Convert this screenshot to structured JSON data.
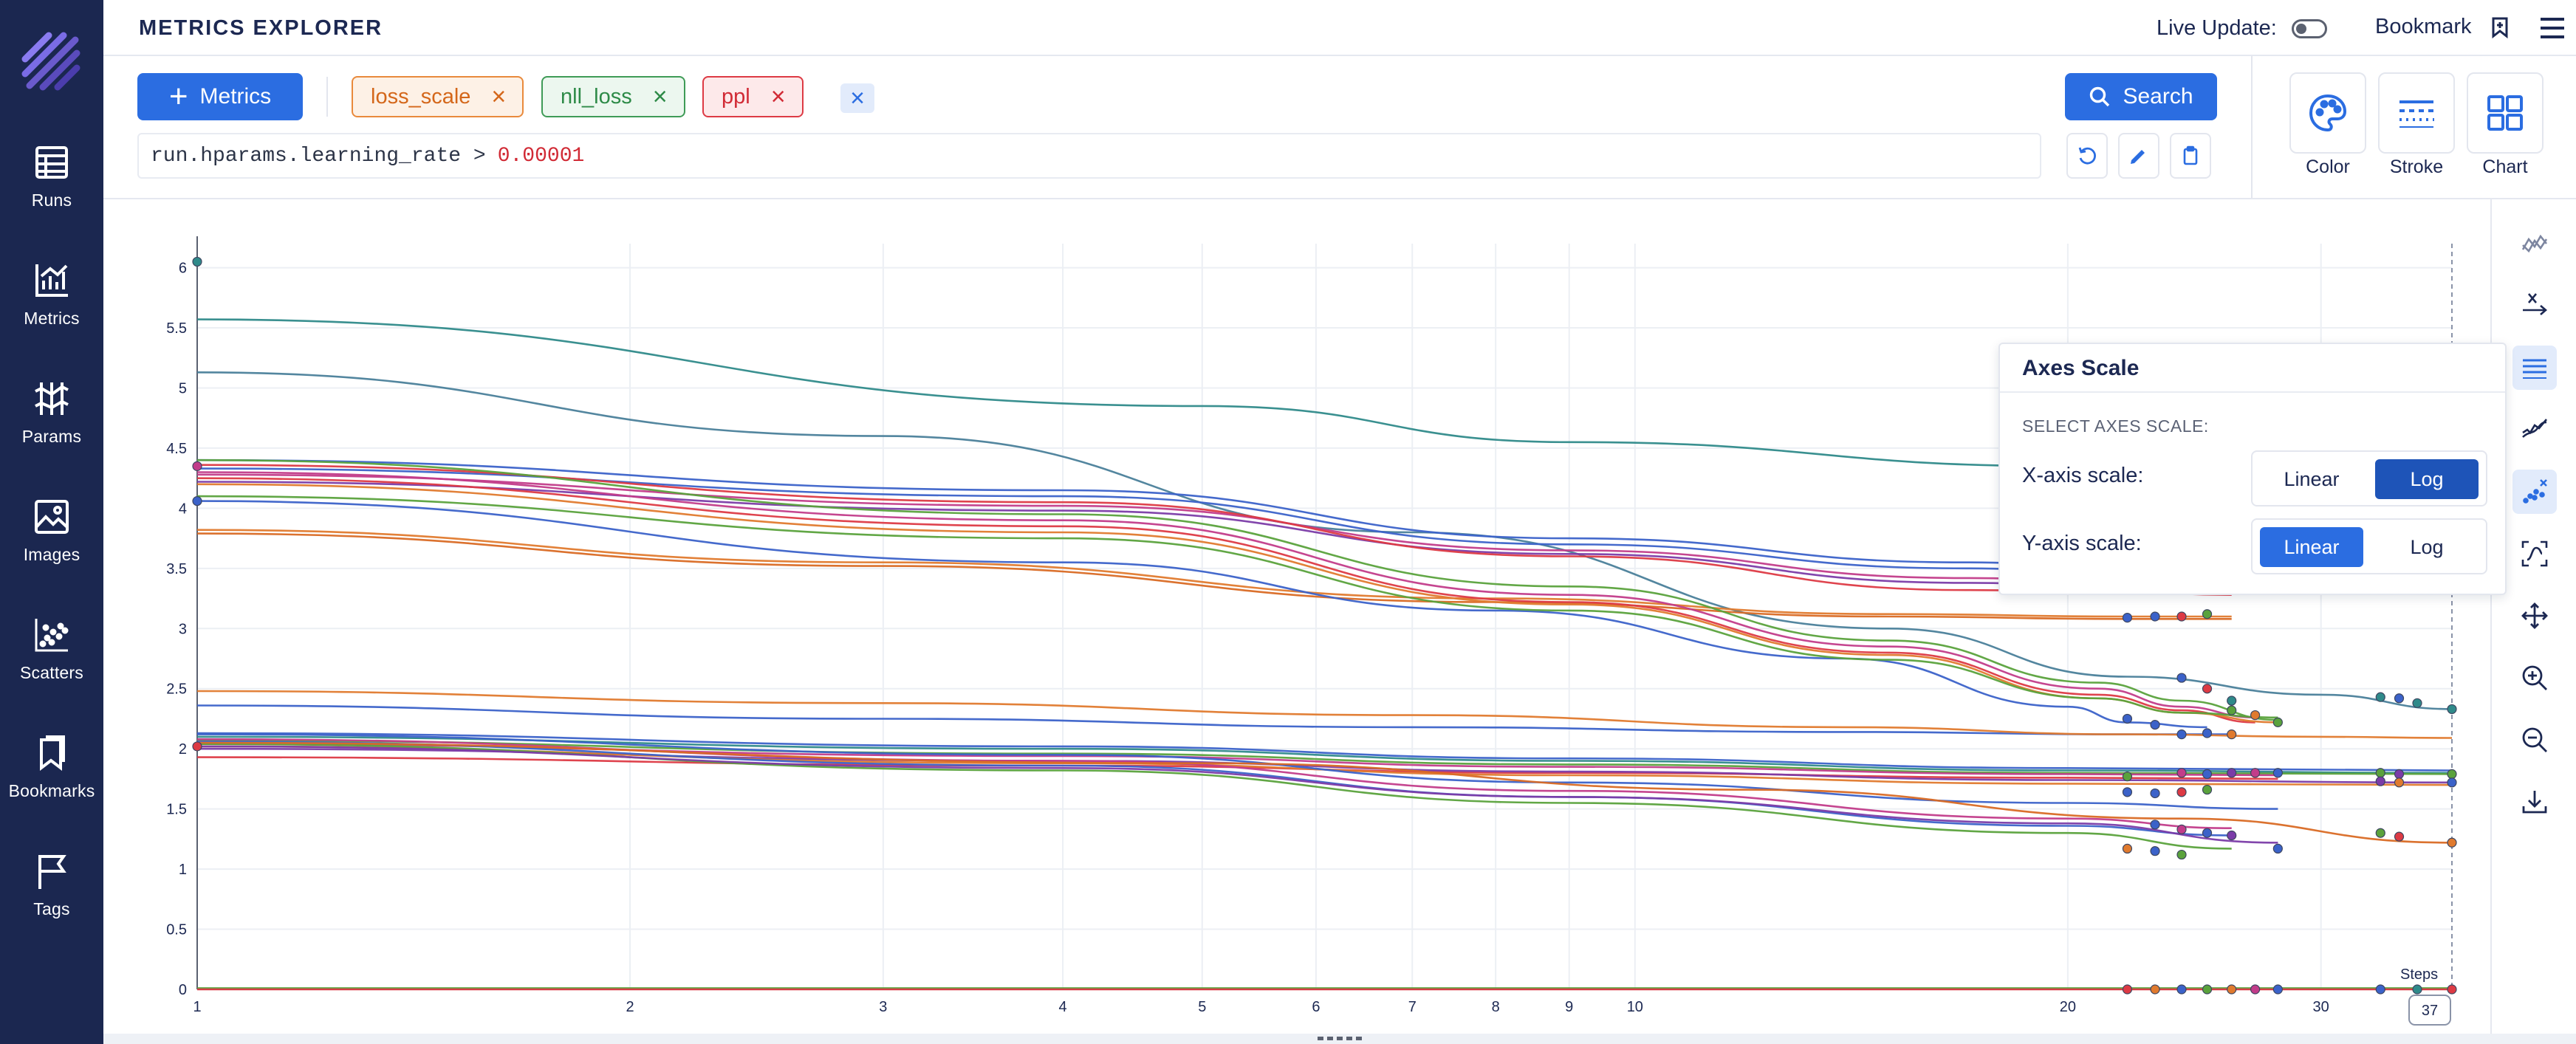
{
  "app": {
    "title": "METRICS EXPLORER"
  },
  "sidebar": {
    "items": [
      {
        "label": "Runs",
        "icon": "table-icon"
      },
      {
        "label": "Metrics",
        "icon": "chart-icon"
      },
      {
        "label": "Params",
        "icon": "params-icon"
      },
      {
        "label": "Images",
        "icon": "image-icon"
      },
      {
        "label": "Scatters",
        "icon": "scatter-icon"
      },
      {
        "label": "Bookmarks",
        "icon": "bookmark-icon"
      },
      {
        "label": "Tags",
        "icon": "flag-icon"
      }
    ]
  },
  "header": {
    "live_update_label": "Live Update:",
    "live_update_on": false,
    "bookmark_label": "Bookmark"
  },
  "toolbar": {
    "metrics_label": "Metrics",
    "chips": [
      {
        "label": "loss_scale",
        "color": "#e98a3c"
      },
      {
        "label": "nll_loss",
        "color": "#3f9b57"
      },
      {
        "label": "ppl",
        "color": "#dd3a44"
      }
    ],
    "search_label": "Search",
    "query_text": "run.hparams.learning_rate >",
    "query_value": "0.00001"
  },
  "controls": {
    "color_label": "Color",
    "stroke_label": "Stroke",
    "chart_label": "Chart"
  },
  "axes_popover": {
    "title": "Axes Scale",
    "subtitle": "SELECT AXES SCALE:",
    "x_label": "X-axis scale:",
    "y_label": "Y-axis scale:",
    "linear": "Linear",
    "log": "Log",
    "x_selected": "Log",
    "y_selected": "Linear"
  },
  "chart_data": {
    "type": "line",
    "x_scale": "log",
    "y_scale": "linear",
    "xlim": [
      1,
      37
    ],
    "ylim": [
      0,
      6.2
    ],
    "x_ticks": [
      1,
      2,
      3,
      4,
      5,
      6,
      7,
      8,
      9,
      10,
      20,
      30
    ],
    "y_ticks": [
      0,
      0.5,
      1,
      1.5,
      2,
      2.5,
      3,
      3.5,
      4,
      4.5,
      5,
      5.5,
      6
    ],
    "x_axis_caption": "Steps",
    "current_step": "37",
    "series": [
      {
        "color": "#2f8a8a",
        "x": [
          1,
          5,
          9,
          20,
          24,
          37
        ],
        "y": [
          5.57,
          4.85,
          4.55,
          4.35,
          4.32,
          4.3
        ]
      },
      {
        "color": "#4a7f9a",
        "x": [
          1,
          3,
          7,
          15,
          22,
          30,
          37
        ],
        "y": [
          5.13,
          4.6,
          3.8,
          3.0,
          2.6,
          2.45,
          2.33
        ]
      },
      {
        "color": "#3b62c9",
        "x": [
          1,
          4,
          9,
          17,
          22,
          26
        ],
        "y": [
          4.4,
          4.15,
          3.75,
          3.55,
          3.5,
          3.48
        ]
      },
      {
        "color": "#3b62c9",
        "x": [
          1,
          4,
          9,
          17,
          22,
          26
        ],
        "y": [
          4.33,
          4.1,
          3.7,
          3.5,
          3.45,
          3.44
        ]
      },
      {
        "color": "#c23c8a",
        "x": [
          1,
          4,
          9,
          17,
          22,
          26
        ],
        "y": [
          4.28,
          4.02,
          3.65,
          3.42,
          3.38,
          3.36
        ]
      },
      {
        "color": "#7b3ca8",
        "x": [
          1,
          4,
          9,
          17,
          22,
          26
        ],
        "y": [
          4.22,
          3.98,
          3.62,
          3.38,
          3.34,
          3.32
        ]
      },
      {
        "color": "#dd3a44",
        "x": [
          1,
          4,
          9,
          17,
          22,
          26
        ],
        "y": [
          4.36,
          4.05,
          3.6,
          3.32,
          3.3,
          3.28
        ]
      },
      {
        "color": "#e07a2e",
        "x": [
          1,
          3,
          8,
          15,
          22,
          26
        ],
        "y": [
          3.82,
          3.55,
          3.25,
          3.12,
          3.1,
          3.1
        ]
      },
      {
        "color": "#d96a24",
        "x": [
          1,
          3,
          8,
          15,
          22,
          26
        ],
        "y": [
          3.79,
          3.52,
          3.22,
          3.1,
          3.08,
          3.08
        ]
      },
      {
        "color": "#3b62c9",
        "x": [
          1,
          4,
          8,
          14,
          20,
          22,
          25
        ],
        "y": [
          4.06,
          3.55,
          3.15,
          2.75,
          2.35,
          2.22,
          2.18
        ]
      },
      {
        "color": "#5aa23c",
        "x": [
          1,
          4,
          9,
          15,
          21,
          24,
          28
        ],
        "y": [
          4.4,
          3.95,
          3.35,
          2.9,
          2.55,
          2.4,
          2.24
        ]
      },
      {
        "color": "#c23c8a",
        "x": [
          1,
          4,
          9,
          15,
          21,
          24,
          27
        ],
        "y": [
          4.3,
          3.9,
          3.28,
          2.85,
          2.5,
          2.35,
          2.26
        ]
      },
      {
        "color": "#dd3a44",
        "x": [
          1,
          4,
          9,
          15,
          21,
          24,
          27
        ],
        "y": [
          4.25,
          3.85,
          3.22,
          2.8,
          2.45,
          2.32,
          2.22
        ]
      },
      {
        "color": "#e07a2e",
        "x": [
          1,
          4,
          9,
          15,
          21,
          24,
          28
        ],
        "y": [
          4.2,
          3.8,
          3.2,
          2.78,
          2.42,
          2.3,
          2.22
        ]
      },
      {
        "color": "#5aa23c",
        "x": [
          1,
          4,
          9,
          15,
          21,
          24,
          28
        ],
        "y": [
          4.1,
          3.75,
          3.15,
          2.74,
          2.42,
          2.3,
          2.26
        ]
      },
      {
        "color": "#3b62c9",
        "x": [
          1,
          3,
          7,
          14,
          22,
          26
        ],
        "y": [
          2.36,
          2.25,
          2.18,
          2.14,
          2.12,
          2.12
        ]
      },
      {
        "color": "#e07a2e",
        "x": [
          1,
          3,
          7,
          14,
          22,
          30,
          37
        ],
        "y": [
          2.48,
          2.38,
          2.28,
          2.18,
          2.12,
          2.1,
          2.09
        ]
      },
      {
        "color": "#3b62c9",
        "x": [
          1,
          4,
          9,
          20,
          37
        ],
        "y": [
          2.13,
          2.02,
          1.92,
          1.84,
          1.82
        ]
      },
      {
        "color": "#2f8a8a",
        "x": [
          1,
          4,
          9,
          20,
          37
        ],
        "y": [
          2.1,
          2.0,
          1.9,
          1.82,
          1.8
        ]
      },
      {
        "color": "#5aa23c",
        "x": [
          1,
          4,
          9,
          20,
          37
        ],
        "y": [
          2.07,
          1.96,
          1.87,
          1.8,
          1.79
        ]
      },
      {
        "color": "#c23c8a",
        "x": [
          1,
          4,
          9,
          20,
          28
        ],
        "y": [
          2.04,
          1.94,
          1.85,
          1.79,
          1.78
        ]
      },
      {
        "color": "#dd3a44",
        "x": [
          1,
          4,
          9,
          20,
          28
        ],
        "y": [
          1.93,
          1.86,
          1.8,
          1.76,
          1.75
        ]
      },
      {
        "color": "#7b3ca8",
        "x": [
          1,
          4,
          9,
          20,
          37
        ],
        "y": [
          2.0,
          1.9,
          1.81,
          1.74,
          1.72
        ]
      },
      {
        "color": "#e07a2e",
        "x": [
          1,
          4,
          9,
          20,
          37
        ],
        "y": [
          2.02,
          1.88,
          1.78,
          1.71,
          1.7
        ]
      },
      {
        "color": "#3b62c9",
        "x": [
          1,
          4,
          9,
          20,
          28
        ],
        "y": [
          2.12,
          1.95,
          1.72,
          1.55,
          1.5
        ]
      },
      {
        "color": "#c23c8a",
        "x": [
          1,
          4,
          9,
          20,
          26
        ],
        "y": [
          2.08,
          1.9,
          1.65,
          1.42,
          1.34
        ]
      },
      {
        "color": "#3b62c9",
        "x": [
          1,
          4,
          9,
          20,
          26
        ],
        "y": [
          2.06,
          1.86,
          1.6,
          1.36,
          1.28
        ]
      },
      {
        "color": "#5aa23c",
        "x": [
          1,
          4,
          9,
          20,
          26
        ],
        "y": [
          2.04,
          1.82,
          1.55,
          1.3,
          1.17
        ]
      },
      {
        "color": "#7b3ca8",
        "x": [
          1,
          4,
          9,
          20,
          28
        ],
        "y": [
          2.02,
          1.84,
          1.6,
          1.38,
          1.22
        ]
      },
      {
        "color": "#d96a24",
        "x": [
          1,
          5,
          12,
          24,
          37
        ],
        "y": [
          2.05,
          1.88,
          1.66,
          1.42,
          1.22
        ]
      },
      {
        "color": "#5aa23c",
        "x": [
          1,
          37
        ],
        "y": [
          0.01,
          0.01
        ]
      },
      {
        "color": "#dd3a44",
        "x": [
          1,
          37
        ],
        "y": [
          0.0,
          0.0
        ]
      }
    ],
    "markers": [
      {
        "color": "#2f8a8a",
        "x": 1,
        "y": 6.05
      },
      {
        "color": "#3b62c9",
        "x": 1,
        "y": 4.06
      },
      {
        "color": "#c23c8a",
        "x": 1,
        "y": 4.35
      },
      {
        "color": "#dd3a44",
        "x": 1,
        "y": 2.02
      },
      {
        "color": "#3b62c9",
        "x": 22,
        "y": 3.09
      },
      {
        "color": "#3b62c9",
        "x": 23,
        "y": 3.1
      },
      {
        "color": "#dd3a44",
        "x": 24,
        "y": 3.1
      },
      {
        "color": "#5aa23c",
        "x": 25,
        "y": 3.12
      },
      {
        "color": "#3b62c9",
        "x": 24,
        "y": 2.59
      },
      {
        "color": "#dd3a44",
        "x": 25,
        "y": 2.5
      },
      {
        "color": "#2f8a8a",
        "x": 26,
        "y": 2.4
      },
      {
        "color": "#5aa23c",
        "x": 26,
        "y": 2.32
      },
      {
        "color": "#e07a2e",
        "x": 27,
        "y": 2.28
      },
      {
        "color": "#5aa23c",
        "x": 28,
        "y": 2.22
      },
      {
        "color": "#3b62c9",
        "x": 22,
        "y": 2.25
      },
      {
        "color": "#3b62c9",
        "x": 23,
        "y": 2.2
      },
      {
        "color": "#2f8a8a",
        "x": 33,
        "y": 2.43
      },
      {
        "color": "#3b62c9",
        "x": 34,
        "y": 2.42
      },
      {
        "color": "#2f8a8a",
        "x": 35,
        "y": 2.38
      },
      {
        "color": "#2f8a8a",
        "x": 37,
        "y": 2.33
      },
      {
        "color": "#3b62c9",
        "x": 24,
        "y": 2.12
      },
      {
        "color": "#3b62c9",
        "x": 25,
        "y": 2.13
      },
      {
        "color": "#e07a2e",
        "x": 26,
        "y": 2.12
      },
      {
        "color": "#c23c8a",
        "x": 24,
        "y": 1.8
      },
      {
        "color": "#3b62c9",
        "x": 25,
        "y": 1.79
      },
      {
        "color": "#7b3ca8",
        "x": 26,
        "y": 1.8
      },
      {
        "color": "#c23c8a",
        "x": 27,
        "y": 1.8
      },
      {
        "color": "#3b62c9",
        "x": 28,
        "y": 1.8
      },
      {
        "color": "#5aa23c",
        "x": 22,
        "y": 1.77
      },
      {
        "color": "#5aa23c",
        "x": 33,
        "y": 1.8
      },
      {
        "color": "#7b3ca8",
        "x": 34,
        "y": 1.79
      },
      {
        "color": "#5aa23c",
        "x": 37,
        "y": 1.79
      },
      {
        "color": "#7b3ca8",
        "x": 33,
        "y": 1.73
      },
      {
        "color": "#e07a2e",
        "x": 34,
        "y": 1.72
      },
      {
        "color": "#3b62c9",
        "x": 37,
        "y": 1.72
      },
      {
        "color": "#3b62c9",
        "x": 22,
        "y": 1.64
      },
      {
        "color": "#3b62c9",
        "x": 23,
        "y": 1.63
      },
      {
        "color": "#dd3a44",
        "x": 24,
        "y": 1.64
      },
      {
        "color": "#5aa23c",
        "x": 25,
        "y": 1.66
      },
      {
        "color": "#3b62c9",
        "x": 23,
        "y": 1.37
      },
      {
        "color": "#c23c8a",
        "x": 24,
        "y": 1.33
      },
      {
        "color": "#3b62c9",
        "x": 25,
        "y": 1.3
      },
      {
        "color": "#7b3ca8",
        "x": 26,
        "y": 1.28
      },
      {
        "color": "#5aa23c",
        "x": 33,
        "y": 1.3
      },
      {
        "color": "#dd3a44",
        "x": 34,
        "y": 1.27
      },
      {
        "color": "#e07a2e",
        "x": 37,
        "y": 1.22
      },
      {
        "color": "#e07a2e",
        "x": 22,
        "y": 1.17
      },
      {
        "color": "#3b62c9",
        "x": 23,
        "y": 1.15
      },
      {
        "color": "#5aa23c",
        "x": 24,
        "y": 1.12
      },
      {
        "color": "#3b62c9",
        "x": 28,
        "y": 1.17
      },
      {
        "color": "#dd3a44",
        "x": 22,
        "y": 0.0
      },
      {
        "color": "#e07a2e",
        "x": 23,
        "y": 0.0
      },
      {
        "color": "#3b62c9",
        "x": 24,
        "y": 0.0
      },
      {
        "color": "#5aa23c",
        "x": 25,
        "y": 0.0
      },
      {
        "color": "#e07a2e",
        "x": 26,
        "y": 0.0
      },
      {
        "color": "#c23c8a",
        "x": 27,
        "y": 0.0
      },
      {
        "color": "#3b62c9",
        "x": 28,
        "y": 0.0
      },
      {
        "color": "#3b62c9",
        "x": 33,
        "y": 0.0
      },
      {
        "color": "#2f8a8a",
        "x": 35,
        "y": 0.0
      },
      {
        "color": "#dd3a44",
        "x": 37,
        "y": 0.0
      }
    ]
  }
}
